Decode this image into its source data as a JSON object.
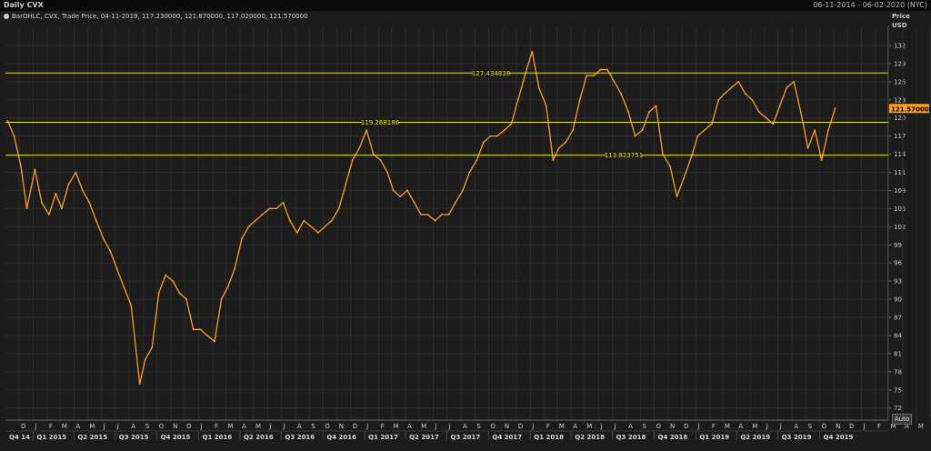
{
  "titlebar": {
    "title": "Daily CVX",
    "range": "06-11-2014 - 06-02-2020 (NYC)"
  },
  "legend": {
    "text": "BarOHLC, CVX, Trade Price, 04-11-2019, 117.230000, 121.870000, 117.020000, 121.570000"
  },
  "axis": {
    "price_label": "Price",
    "currency_label": "USD",
    "auto_label": "Auto"
  },
  "colors": {
    "price_line": "#ff9f1a",
    "level_line": "#e8e02a",
    "last_price_bg": "#ff9f1a",
    "grid": "#2e2e2e",
    "background": "#1c1c1c"
  },
  "chart_data": {
    "type": "line",
    "series": [
      {
        "name": "CVX",
        "x": [
          "2014-11-06",
          "2014-11-20",
          "2014-12-05",
          "2014-12-18",
          "2015-01-05",
          "2015-01-20",
          "2015-02-05",
          "2015-02-20",
          "2015-03-05",
          "2015-03-20",
          "2015-04-05",
          "2015-04-20",
          "2015-05-05",
          "2015-05-20",
          "2015-06-05",
          "2015-06-20",
          "2015-07-05",
          "2015-07-20",
          "2015-08-05",
          "2015-08-24",
          "2015-09-05",
          "2015-09-20",
          "2015-10-05",
          "2015-10-20",
          "2015-11-05",
          "2015-11-20",
          "2015-12-05",
          "2015-12-20",
          "2016-01-05",
          "2016-01-20",
          "2016-02-05",
          "2016-02-20",
          "2016-03-05",
          "2016-03-20",
          "2016-04-05",
          "2016-04-20",
          "2016-05-05",
          "2016-05-20",
          "2016-06-05",
          "2016-06-20",
          "2016-07-05",
          "2016-07-20",
          "2016-08-05",
          "2016-08-20",
          "2016-09-05",
          "2016-09-20",
          "2016-10-05",
          "2016-10-20",
          "2016-11-05",
          "2016-11-20",
          "2016-12-05",
          "2016-12-20",
          "2017-01-05",
          "2017-01-20",
          "2017-02-05",
          "2017-02-20",
          "2017-03-05",
          "2017-03-20",
          "2017-04-05",
          "2017-04-20",
          "2017-05-05",
          "2017-05-20",
          "2017-06-05",
          "2017-06-20",
          "2017-07-05",
          "2017-07-20",
          "2017-08-05",
          "2017-08-20",
          "2017-09-05",
          "2017-09-20",
          "2017-10-05",
          "2017-10-20",
          "2017-11-05",
          "2017-11-20",
          "2017-12-05",
          "2017-12-20",
          "2018-01-05",
          "2018-01-20",
          "2018-02-05",
          "2018-02-20",
          "2018-03-05",
          "2018-03-20",
          "2018-04-05",
          "2018-04-20",
          "2018-05-05",
          "2018-05-20",
          "2018-06-05",
          "2018-06-20",
          "2018-07-05",
          "2018-07-20",
          "2018-08-05",
          "2018-08-20",
          "2018-09-05",
          "2018-09-20",
          "2018-10-05",
          "2018-10-20",
          "2018-11-05",
          "2018-11-20",
          "2018-12-05",
          "2018-12-24",
          "2019-01-05",
          "2019-01-20",
          "2019-02-05",
          "2019-02-20",
          "2019-03-05",
          "2019-03-20",
          "2019-04-05",
          "2019-04-20",
          "2019-05-05",
          "2019-05-20",
          "2019-06-05",
          "2019-06-20",
          "2019-07-05",
          "2019-07-20",
          "2019-08-05",
          "2019-08-20",
          "2019-09-05",
          "2019-09-20",
          "2019-10-05",
          "2019-10-20",
          "2019-11-04"
        ],
        "values": [
          119.5,
          117,
          112,
          105,
          111.5,
          106,
          104,
          107.5,
          105,
          109,
          111,
          108,
          106,
          103,
          100,
          98,
          95,
          92,
          89,
          76,
          80,
          82,
          91,
          94,
          93,
          91,
          90,
          85,
          85,
          84,
          83,
          90,
          92,
          95,
          100,
          102,
          103,
          104,
          105,
          105,
          106,
          103,
          101,
          103,
          102,
          101,
          102,
          103,
          105,
          109,
          113,
          115,
          118,
          114,
          113,
          111,
          108,
          107,
          108,
          106,
          104,
          104,
          103,
          104,
          104,
          106,
          108,
          111,
          113,
          116,
          117,
          117,
          118,
          119,
          123,
          127,
          131,
          125,
          122,
          113,
          115,
          116,
          118,
          123,
          127,
          127,
          128,
          128,
          126,
          124,
          121,
          117,
          118,
          121,
          122,
          114,
          112,
          107,
          110,
          114,
          117,
          118,
          119,
          123,
          124,
          125,
          126,
          124,
          123,
          121,
          120,
          119,
          122,
          125,
          126,
          121,
          115,
          118,
          113,
          118,
          121.57
        ]
      }
    ],
    "horizontal_lines": [
      {
        "label": "127.434838",
        "value": 127.434838
      },
      {
        "label": "119.268186",
        "value": 119.268186
      },
      {
        "label": "113.823751",
        "value": 113.823751
      }
    ],
    "last_price_label": "121.570000",
    "y_ticks": [
      "132",
      "129",
      "126",
      "123",
      "120",
      "117",
      "114",
      "111",
      "108",
      "105",
      "102",
      "99",
      "96",
      "93",
      "90",
      "87",
      "84",
      "81",
      "78",
      "75",
      "72"
    ],
    "ylim": [
      70,
      135
    ],
    "xlim": [
      "2014-11-01",
      "2020-02-29"
    ],
    "x_month_labels": [
      "D",
      "J",
      "F",
      "M",
      "A",
      "M",
      "J",
      "J",
      "A",
      "S",
      "O",
      "N",
      "D",
      "J",
      "F",
      "M",
      "A",
      "M",
      "J",
      "J",
      "A",
      "S",
      "O",
      "N",
      "D",
      "J",
      "F",
      "M",
      "A",
      "M",
      "J",
      "J",
      "A",
      "S",
      "O",
      "N",
      "D",
      "J",
      "F",
      "M",
      "A",
      "M",
      "J",
      "J",
      "A",
      "S",
      "O",
      "N",
      "D",
      "J",
      "F",
      "M",
      "A",
      "M",
      "J",
      "J",
      "A",
      "S",
      "O",
      "N",
      "D",
      "J",
      "F",
      "M",
      "A",
      "M",
      "J",
      "J",
      "A",
      "S",
      "O",
      "N",
      "D",
      "J",
      "F"
    ],
    "x_quarter_labels": [
      "Q4 14",
      "Q1 2015",
      "Q2 2015",
      "Q3 2015",
      "Q4 2015",
      "Q1 2016",
      "Q2 2016",
      "Q3 2016",
      "Q4 2016",
      "Q1 2017",
      "Q2 2017",
      "Q3 2017",
      "Q4 2017",
      "Q1 2018",
      "Q2 2018",
      "Q3 2018",
      "Q4 2018",
      "Q1 2019",
      "Q2 2019",
      "Q3 2019",
      "Q4 2019"
    ],
    "grid": true
  }
}
